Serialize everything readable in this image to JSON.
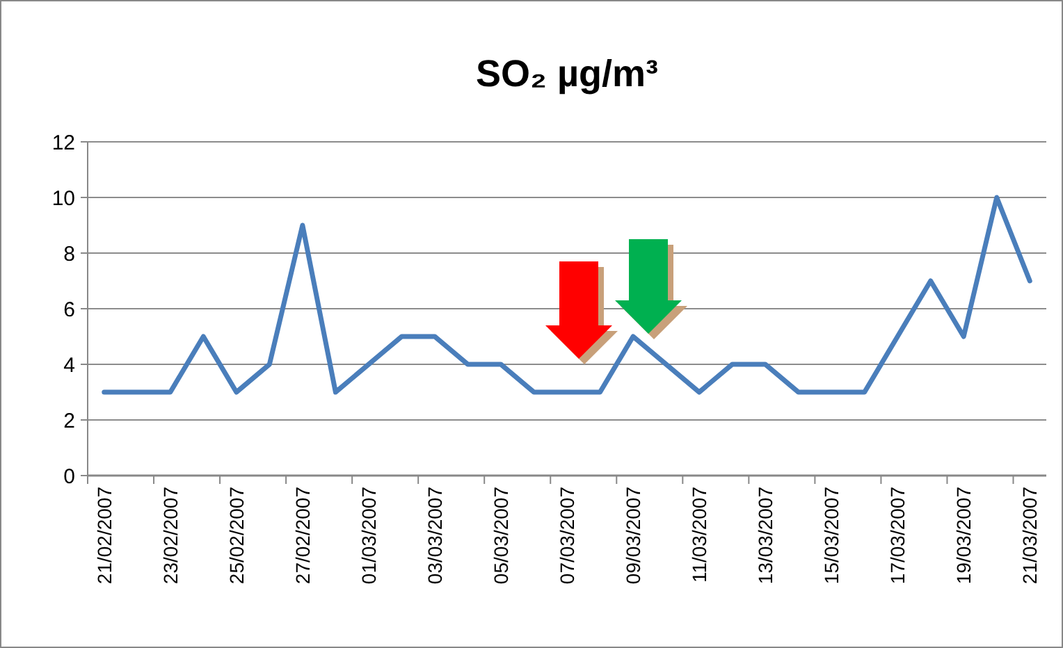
{
  "chart_data": {
    "type": "line",
    "title": "SO₂  µg/m³",
    "categories": [
      "21/02/2007",
      null,
      "23/02/2007",
      null,
      "25/02/2007",
      null,
      "27/02/2007",
      null,
      "01/03/2007",
      null,
      "03/03/2007",
      null,
      "05/03/2007",
      null,
      "07/03/2007",
      null,
      "09/03/2007",
      null,
      "11/03/2007",
      null,
      "13/03/2007",
      null,
      "15/03/2007",
      null,
      "17/03/2007",
      null,
      "19/03/2007",
      null,
      "21/03/2007"
    ],
    "series": [
      {
        "color": "#4a7ebb",
        "values": [
          3,
          3,
          3,
          5,
          3,
          4,
          9,
          3,
          4,
          5,
          5,
          4,
          4,
          3,
          3,
          3,
          5,
          4,
          3,
          4,
          4,
          3,
          3,
          3,
          5,
          7,
          5,
          10,
          7
        ]
      }
    ],
    "ylim": [
      0,
      12
    ],
    "yticks": [
      0,
      2,
      4,
      6,
      8,
      10,
      12
    ],
    "grid": "y",
    "line_style": "solid",
    "marker": "none"
  }
}
